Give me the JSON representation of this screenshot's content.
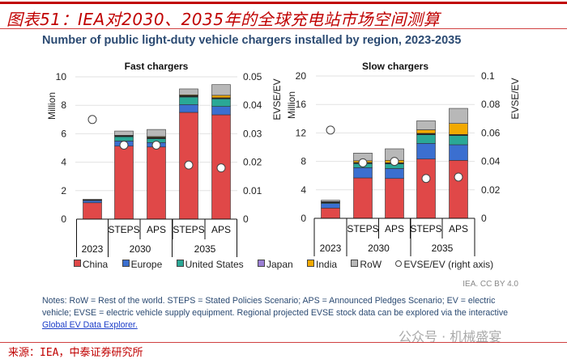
{
  "header": {
    "title": "图表51：IEA对2030、2035年的全球充电站市场空间测算"
  },
  "chart_title": "Number of public light-duty vehicle chargers installed by region, 2023-2035",
  "colors": {
    "China": "#e04848",
    "Europe": "#3b6fd0",
    "United States": "#2aa896",
    "Japan": "#9b7fd4",
    "India": "#f2a900",
    "RoW": "#b8b8b8"
  },
  "legend": [
    "China",
    "Europe",
    "United States",
    "Japan",
    "India",
    "RoW",
    "EVSE/EV (right axis)"
  ],
  "chart_data": [
    {
      "type": "bar",
      "stacked": true,
      "title": "Fast chargers",
      "ylabel": "Million",
      "y2label": "EVSE/EV",
      "ylim": [
        0,
        10
      ],
      "yticks": [
        "0",
        "2",
        "4",
        "6",
        "8",
        "10"
      ],
      "y2lim": [
        0,
        0.05
      ],
      "y2ticks": [
        "0",
        "0.01",
        "0.02",
        "0.03",
        "0.04",
        "0.05"
      ],
      "categories": [
        {
          "scenario": "",
          "year": "2023"
        },
        {
          "scenario": "STEPS",
          "year": "2030"
        },
        {
          "scenario": "APS",
          "year": "2030"
        },
        {
          "scenario": "STEPS",
          "year": "2035"
        },
        {
          "scenario": "APS",
          "year": "2035"
        }
      ],
      "year_groups": [
        "2023",
        "2030",
        "2035"
      ],
      "series": [
        {
          "name": "China",
          "values": [
            1.15,
            5.13,
            5.07,
            7.5,
            7.33
          ]
        },
        {
          "name": "Europe",
          "values": [
            0.15,
            0.36,
            0.31,
            0.55,
            0.59
          ]
        },
        {
          "name": "United States",
          "values": [
            0.03,
            0.3,
            0.27,
            0.53,
            0.53
          ]
        },
        {
          "name": "Japan",
          "values": [
            0.02,
            0.08,
            0.1,
            0.1,
            0.08
          ]
        },
        {
          "name": "India",
          "values": [
            0,
            0.02,
            0.05,
            0.05,
            0.17
          ]
        },
        {
          "name": "RoW",
          "values": [
            0.05,
            0.3,
            0.5,
            0.42,
            0.75
          ]
        }
      ],
      "evse_ev": [
        0.035,
        0.026,
        0.026,
        0.019,
        0.018
      ]
    },
    {
      "type": "bar",
      "stacked": true,
      "title": "Slow chargers",
      "ylabel": "Million",
      "y2label": "EVSE/EV",
      "ylim": [
        0,
        20
      ],
      "yticks": [
        "0",
        "4",
        "8",
        "12",
        "16",
        "20"
      ],
      "y2lim": [
        0,
        0.1
      ],
      "y2ticks": [
        "0",
        "0.02",
        "0.04",
        "0.06",
        "0.08",
        "0.1"
      ],
      "categories": [
        {
          "scenario": "",
          "year": "2023"
        },
        {
          "scenario": "STEPS",
          "year": "2030"
        },
        {
          "scenario": "APS",
          "year": "2030"
        },
        {
          "scenario": "STEPS",
          "year": "2035"
        },
        {
          "scenario": "APS",
          "year": "2035"
        }
      ],
      "year_groups": [
        "2023",
        "2030",
        "2035"
      ],
      "series": [
        {
          "name": "China",
          "values": [
            1.44,
            5.68,
            5.6,
            8.33,
            8.14
          ]
        },
        {
          "name": "Europe",
          "values": [
            0.64,
            1.44,
            1.4,
            2.2,
            2.2
          ]
        },
        {
          "name": "United States",
          "values": [
            0.1,
            0.57,
            0.65,
            1.21,
            1.29
          ]
        },
        {
          "name": "Japan",
          "values": [
            0.15,
            0.15,
            0.15,
            0.2,
            0.15
          ]
        },
        {
          "name": "India",
          "values": [
            0.02,
            0.25,
            0.35,
            0.5,
            1.55
          ]
        },
        {
          "name": "RoW",
          "values": [
            0.19,
            1.08,
            1.62,
            1.26,
            2.12
          ]
        }
      ],
      "evse_ev": [
        0.062,
        0.039,
        0.04,
        0.028,
        0.029
      ]
    }
  ],
  "credit": "IEA. CC BY 4.0",
  "notes": {
    "text": "Notes: RoW = Rest of the world. STEPS = Stated Policies Scenario; APS = Announced Pledges Scenario; EV = electric vehicle; EVSE = electric vehicle supply equipment. Regional projected EVSE stock data can be explored via the interactive ",
    "link": "Global EV Data Explorer."
  },
  "watermark": "公众号 · 机械盛宴",
  "source": "来源：IEA，中泰证券研究所"
}
